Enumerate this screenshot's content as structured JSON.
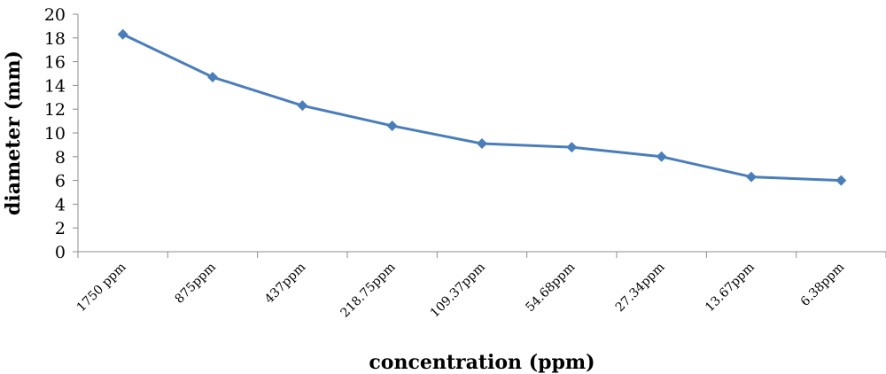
{
  "chart_data": {
    "type": "line",
    "title": "",
    "xlabel": "concentration (ppm)",
    "ylabel": "diameter (mm)",
    "categories": [
      "1750 ppm",
      "875ppm",
      "437ppm",
      "218.75ppm",
      "109.37ppm",
      "54.68ppm",
      "27.34ppm",
      "13.67ppm",
      "6.38ppm"
    ],
    "y_ticks": [
      "0",
      "2",
      "4",
      "6",
      "8",
      "10",
      "12",
      "14",
      "16",
      "18",
      "20"
    ],
    "ylim": [
      0,
      20
    ],
    "grid": false,
    "legend": "none",
    "series": [
      {
        "values": [
          18.3,
          14.7,
          12.3,
          10.6,
          9.1,
          8.8,
          8.0,
          6.3,
          6.0
        ],
        "color": "#4a7ebb",
        "marker": "diamond"
      }
    ]
  }
}
